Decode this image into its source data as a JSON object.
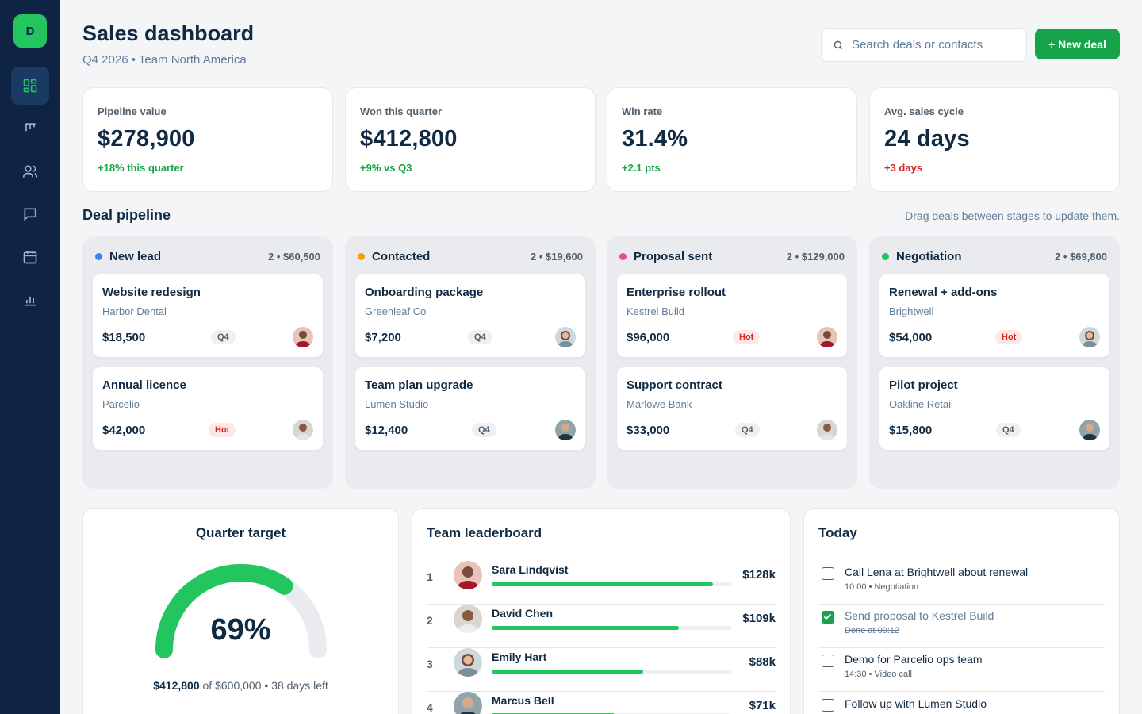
{
  "sidebar": {
    "logo_letter": "D",
    "items": [
      {
        "name": "dashboard-icon",
        "active": true
      },
      {
        "name": "pipeline-icon",
        "active": false
      },
      {
        "name": "users-icon",
        "active": false
      },
      {
        "name": "messages-icon",
        "active": false
      },
      {
        "name": "calendar-icon",
        "active": false
      },
      {
        "name": "reports-icon",
        "active": false
      }
    ]
  },
  "header": {
    "title": "Sales dashboard",
    "subtitle": "Q4 2026 • Team North America",
    "search_placeholder": "Search deals or contacts",
    "new_deal_label": "+ New deal"
  },
  "kpis": [
    {
      "label": "Pipeline value",
      "value": "$278,900",
      "delta": "+18% this quarter",
      "trend": "up"
    },
    {
      "label": "Won this quarter",
      "value": "$412,800",
      "delta": "+9% vs Q3",
      "trend": "up"
    },
    {
      "label": "Win rate",
      "value": "31.4%",
      "delta": "+2.1 pts",
      "trend": "up"
    },
    {
      "label": "Avg. sales cycle",
      "value": "24 days",
      "delta": "+3 days",
      "trend": "down"
    }
  ],
  "pipeline": {
    "title": "Deal pipeline",
    "hint": "Drag deals between stages to update them.",
    "columns": [
      {
        "name": "New lead",
        "meta": "2 • $60,500",
        "color": "#3b82f6",
        "deals": [
          {
            "title": "Website redesign",
            "company": "Harbor Dental",
            "value": "$18,500",
            "tag": "Q4"
          },
          {
            "title": "Annual licence",
            "company": "Parcelio",
            "value": "$42,000",
            "tag": "Hot"
          }
        ]
      },
      {
        "name": "Contacted",
        "meta": "2 • $19,600",
        "color": "#f59e0b",
        "deals": [
          {
            "title": "Onboarding package",
            "company": "Greenleaf Co",
            "value": "$7,200",
            "tag": "Q4"
          },
          {
            "title": "Team plan upgrade",
            "company": "Lumen Studio",
            "value": "$12,400",
            "tag": "Q4"
          }
        ]
      },
      {
        "name": "Proposal sent",
        "meta": "2 • $129,000",
        "color": "#ec4899",
        "deals": [
          {
            "title": "Enterprise rollout",
            "company": "Kestrel Build",
            "value": "$96,000",
            "tag": "Hot"
          },
          {
            "title": "Support contract",
            "company": "Marlowe Bank",
            "value": "$33,000",
            "tag": "Q4"
          }
        ]
      },
      {
        "name": "Negotiation",
        "meta": "2 • $69,800",
        "color": "#22c55e",
        "deals": [
          {
            "title": "Renewal + add-ons",
            "company": "Brightwell",
            "value": "$54,000",
            "tag": "Hot"
          },
          {
            "title": "Pilot project",
            "company": "Oakline Retail",
            "value": "$15,800",
            "tag": "Q4"
          }
        ]
      }
    ]
  },
  "target": {
    "title": "Quarter target",
    "percent": "69%",
    "progress": 0.69,
    "won": "$412,800",
    "rest": " of $600,000 • 38 days left"
  },
  "leaderboard": {
    "title": "Team leaderboard",
    "rows": [
      {
        "rank": "1",
        "name": "Sara Lindqvist",
        "amount": "$128k",
        "progress": 0.92
      },
      {
        "rank": "2",
        "name": "David Chen",
        "amount": "$109k",
        "progress": 0.78
      },
      {
        "rank": "3",
        "name": "Emily Hart",
        "amount": "$88k",
        "progress": 0.63
      },
      {
        "rank": "4",
        "name": "Marcus Bell",
        "amount": "$71k",
        "progress": 0.51
      }
    ]
  },
  "today": {
    "title": "Today",
    "tasks": [
      {
        "title": "Call Lena at Brightwell about renewal",
        "meta": "10:00 • Negotiation",
        "done": false
      },
      {
        "title": "Send proposal to Kestrel Build",
        "meta": "Done at 09:12",
        "done": true
      },
      {
        "title": "Demo for Parcelio ops team",
        "meta": "14:30 • Video call",
        "done": false
      },
      {
        "title": "Follow up with Lumen Studio",
        "meta": "",
        "done": false
      }
    ]
  }
}
